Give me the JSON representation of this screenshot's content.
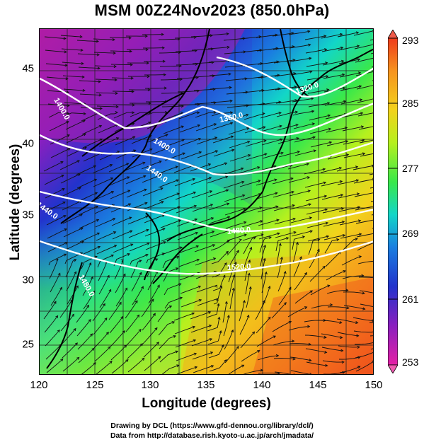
{
  "title": "MSM 00Z24Nov2023 (850.0hPa)",
  "axes": {
    "xlabel": "Longitude (degrees)",
    "ylabel": "Latitude  (degrees)",
    "xlim": [
      120,
      150
    ],
    "ylim": [
      22.4,
      47.6
    ],
    "x_ticks": [
      "120",
      "125",
      "130",
      "135",
      "140",
      "145",
      "150"
    ],
    "y_ticks": [
      "25",
      "30",
      "35",
      "40",
      "45"
    ]
  },
  "colorbar": {
    "labels": [
      "293",
      "285",
      "277",
      "269",
      "261",
      "253"
    ],
    "range": [
      253,
      293
    ],
    "colors": [
      "#d11a92",
      "#8a1fbf",
      "#2233cc",
      "#1a7ee0",
      "#12d6c8",
      "#39e84a",
      "#b6f01e",
      "#f2d21b",
      "#f6931e",
      "#ef3b1c"
    ]
  },
  "contour_labels": {
    "c1": "1320.0",
    "c2": "1360.0",
    "c3": "1400.0",
    "c4": "1440.0",
    "c5": "1480.0",
    "c6": "1520.0",
    "c7": "1400.0",
    "c8": "1440.0",
    "c9": "1480.0"
  },
  "footer": {
    "line1": "Drawing by DCL (https://www.gfd-dennou.org/library/dcl/)",
    "line2": "Data from http://database.rish.kyoto-u.ac.jp/arch/jmadata/"
  }
}
